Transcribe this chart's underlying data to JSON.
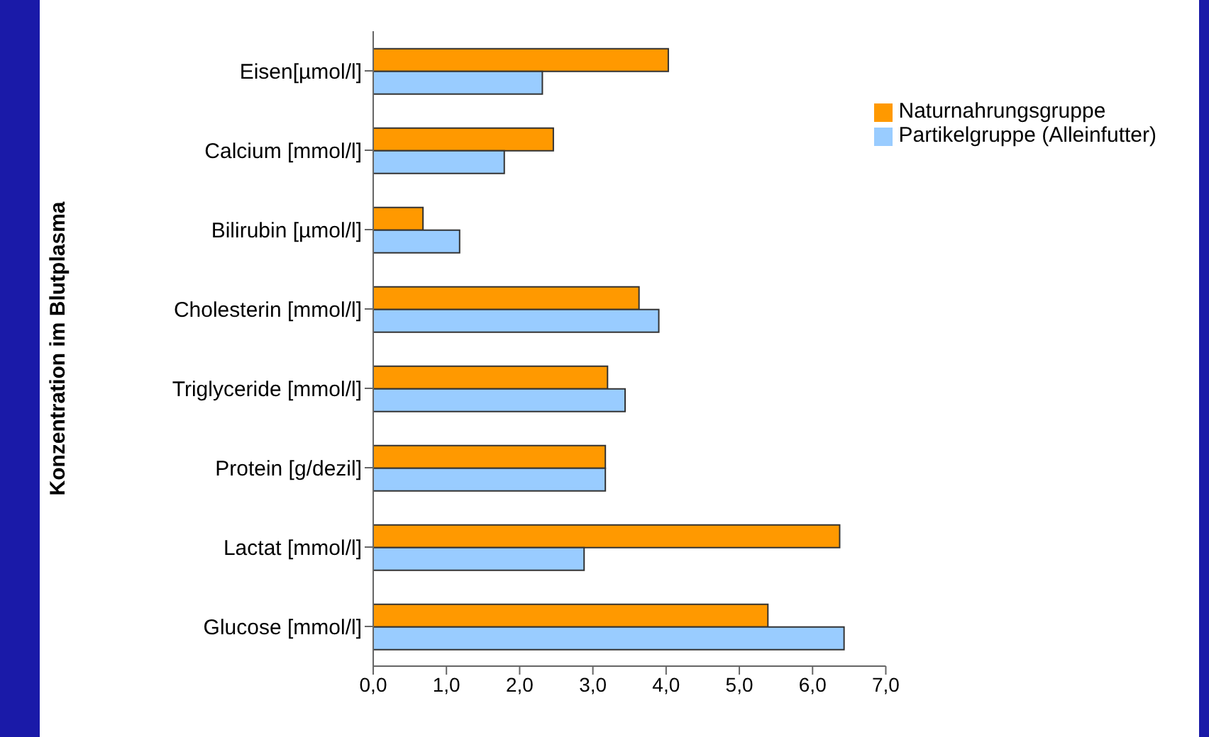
{
  "chart_data": {
    "type": "bar",
    "orientation": "horizontal",
    "ylabel": "Konzentration im Blutplasma",
    "categories": [
      "Eisen[µmol/l]",
      "Calcium [mmol/l]",
      "Bilirubin [µmol/l]",
      "Cholesterin [mmol/l]",
      "Triglyceride [mmol/l]",
      "Protein [g/dezil]",
      "Lactat [mmol/l]",
      "Glucose [mmol/l]"
    ],
    "series": [
      {
        "name": "Naturnahrungsgruppe",
        "color": "#ff9900",
        "values": [
          4.03,
          2.46,
          0.68,
          3.63,
          3.2,
          3.17,
          6.37,
          5.39
        ]
      },
      {
        "name": "Partikelgruppe (Alleinfutter)",
        "color": "#99ccff",
        "values": [
          2.31,
          1.79,
          1.18,
          3.9,
          3.44,
          3.17,
          2.88,
          6.43
        ]
      }
    ],
    "xlim": [
      0,
      7
    ],
    "xticks": [
      {
        "value": 0,
        "label": "0,0"
      },
      {
        "value": 1,
        "label": "1,0"
      },
      {
        "value": 2,
        "label": "2,0"
      },
      {
        "value": 3,
        "label": "3,0"
      },
      {
        "value": 4,
        "label": "4,0"
      },
      {
        "value": 5,
        "label": "5,0"
      },
      {
        "value": 6,
        "label": "6,0"
      },
      {
        "value": 7,
        "label": "7,0"
      }
    ],
    "grid": false,
    "legend": "top right"
  }
}
